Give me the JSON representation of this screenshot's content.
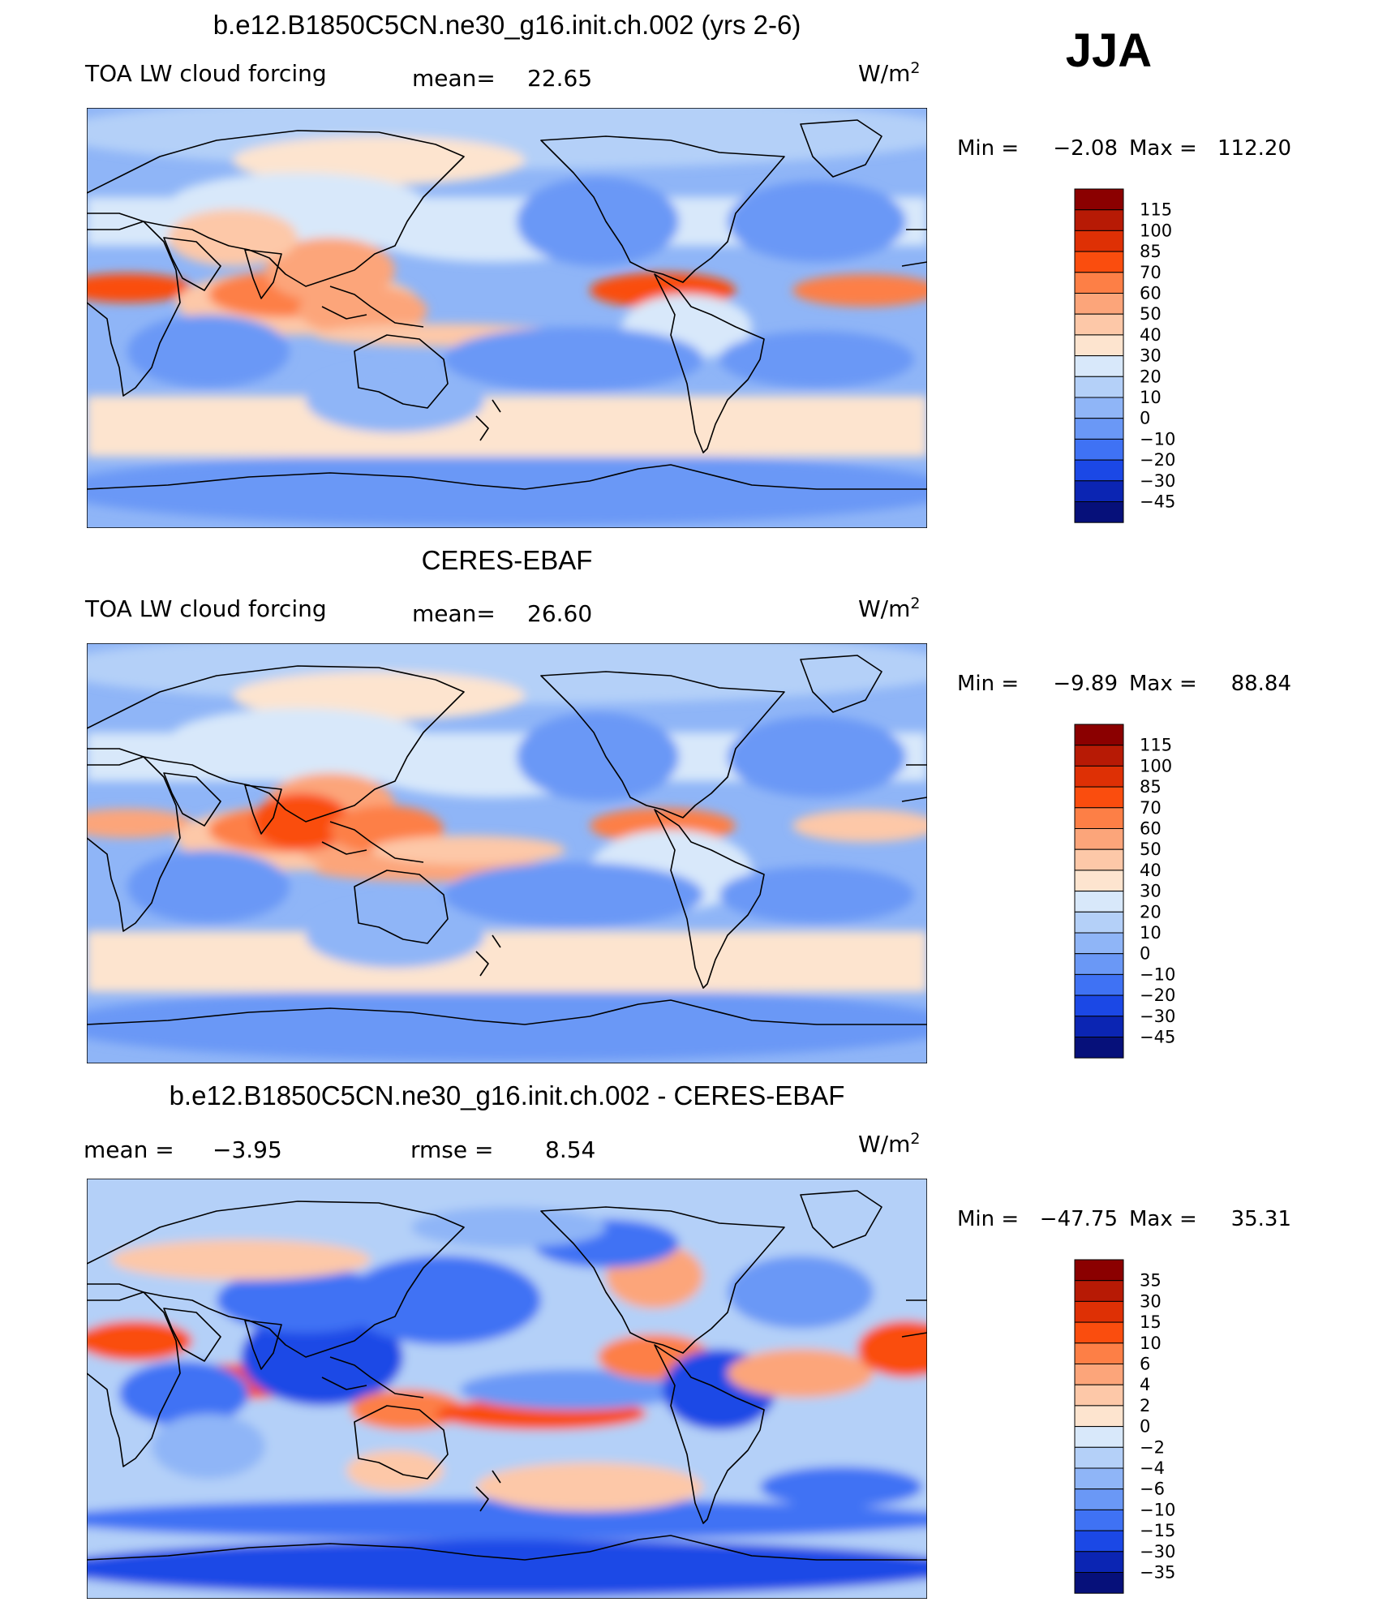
{
  "season_label": "JJA",
  "panels": [
    {
      "title": "b.e12.B1850C5CN.ne30_g16.init.ch.002 (yrs 2-6)",
      "left_label": "TOA LW cloud forcing",
      "center_label": "mean=",
      "center_value": "22.65",
      "units": "W/m",
      "units_sup": "2",
      "minmax_min_label": "Min =",
      "min_value": "−2.08",
      "minmax_max_label": "Max =",
      "max_value": "112.20",
      "colorbar_labels": [
        "115",
        "100",
        "85",
        "70",
        "60",
        "50",
        "40",
        "30",
        "20",
        "10",
        "0",
        "−10",
        "−20",
        "−30",
        "−45"
      ],
      "colorbar_colors": [
        "#8b0000",
        "#b71a05",
        "#de3005",
        "#fa4d0e",
        "#fd7f46",
        "#fca57a",
        "#fdc8a8",
        "#fde4cf",
        "#d8e8fa",
        "#b4d0f8",
        "#8fb5f7",
        "#6a98f6",
        "#3f72f4",
        "#1b48e6",
        "#0b25b3",
        "#06107a"
      ],
      "map_style": "model"
    },
    {
      "title": "CERES-EBAF",
      "left_label": "TOA LW cloud forcing",
      "center_label": "mean=",
      "center_value": "26.60",
      "units": "W/m",
      "units_sup": "2",
      "minmax_min_label": "Min =",
      "min_value": "−9.89",
      "minmax_max_label": "Max =",
      "max_value": "88.84",
      "colorbar_labels": [
        "115",
        "100",
        "85",
        "70",
        "60",
        "50",
        "40",
        "30",
        "20",
        "10",
        "0",
        "−10",
        "−20",
        "−30",
        "−45"
      ],
      "colorbar_colors": [
        "#8b0000",
        "#b71a05",
        "#de3005",
        "#fa4d0e",
        "#fd7f46",
        "#fca57a",
        "#fdc8a8",
        "#fde4cf",
        "#d8e8fa",
        "#b4d0f8",
        "#8fb5f7",
        "#6a98f6",
        "#3f72f4",
        "#1b48e6",
        "#0b25b3",
        "#06107a"
      ],
      "map_style": "obs"
    },
    {
      "title": "b.e12.B1850C5CN.ne30_g16.init.ch.002 - CERES-EBAF",
      "left_label": "mean = −3.95",
      "center_label": "rmse =",
      "center_value": "8.54",
      "units": "W/m",
      "units_sup": "2",
      "minmax_min_label": "Min =",
      "min_value": "−47.75",
      "minmax_max_label": "Max =",
      "max_value": "35.31",
      "colorbar_labels": [
        "35",
        "30",
        "15",
        "10",
        "6",
        "4",
        "2",
        "0",
        "−2",
        "−4",
        "−6",
        "−10",
        "−15",
        "−30",
        "−35"
      ],
      "colorbar_colors": [
        "#8b0000",
        "#b71a05",
        "#de3005",
        "#fa4d0e",
        "#fd7f46",
        "#fca57a",
        "#fdc8a8",
        "#fde4cf",
        "#d8e8fa",
        "#b4d0f8",
        "#8fb5f7",
        "#6a98f6",
        "#3f72f4",
        "#1b48e6",
        "#0b25b3",
        "#06107a"
      ],
      "map_style": "diff"
    }
  ]
}
